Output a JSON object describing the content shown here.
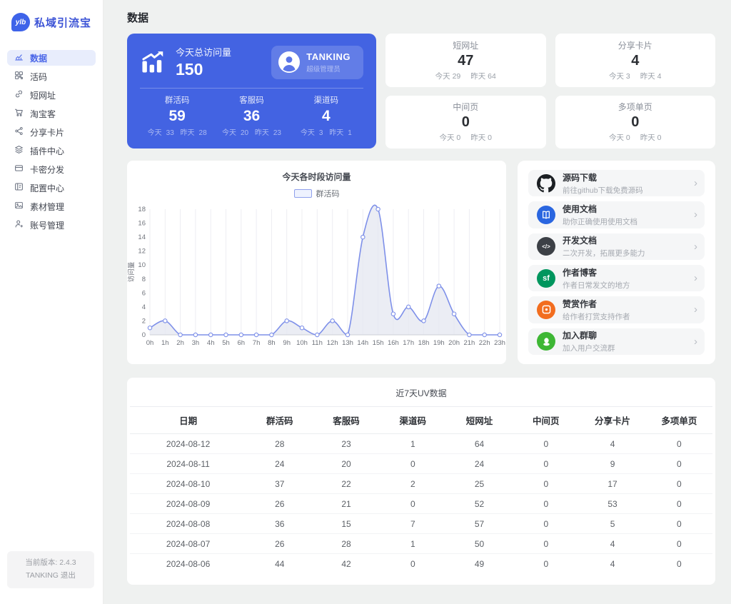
{
  "app": {
    "logo_badge": "ylb",
    "logo_text": "私域引流宝",
    "primary_color": "#4363e2"
  },
  "labels": {
    "today": "今天",
    "yesterday": "昨天"
  },
  "sidebar": {
    "items": [
      {
        "label": "数据",
        "icon": "data-chart-icon",
        "active": true
      },
      {
        "label": "活码",
        "icon": "qr-code-icon",
        "active": false
      },
      {
        "label": "短网址",
        "icon": "link-icon",
        "active": false
      },
      {
        "label": "淘宝客",
        "icon": "cart-icon",
        "active": false
      },
      {
        "label": "分享卡片",
        "icon": "share-icon",
        "active": false
      },
      {
        "label": "插件中心",
        "icon": "layers-icon",
        "active": false
      },
      {
        "label": "卡密分发",
        "icon": "card-icon",
        "active": false
      },
      {
        "label": "配置中心",
        "icon": "config-icon",
        "active": false
      },
      {
        "label": "素材管理",
        "icon": "material-icon",
        "active": false
      },
      {
        "label": "账号管理",
        "icon": "user-icon",
        "active": false
      }
    ],
    "footer": {
      "version": "当前版本: 2.4.3",
      "user": "TANKING",
      "logout": "退出"
    }
  },
  "header": {
    "title": "数据"
  },
  "overview": {
    "total": {
      "label": "今天总访问量",
      "value": "150",
      "icon": "trend-bars-icon"
    },
    "admin": {
      "name": "TANKING",
      "role": "超级管理员",
      "icon": "avatar-person-icon"
    },
    "blue_stats": [
      {
        "label": "群活码",
        "value": "59",
        "today": "33",
        "yesterday": "28"
      },
      {
        "label": "客服码",
        "value": "36",
        "today": "20",
        "yesterday": "23"
      },
      {
        "label": "渠道码",
        "value": "4",
        "today": "3",
        "yesterday": "1"
      }
    ],
    "white_stats": [
      {
        "label": "短网址",
        "value": "47",
        "today": "29",
        "yesterday": "64"
      },
      {
        "label": "分享卡片",
        "value": "4",
        "today": "3",
        "yesterday": "4"
      },
      {
        "label": "中间页",
        "value": "0",
        "today": "0",
        "yesterday": "0"
      },
      {
        "label": "多项单页",
        "value": "0",
        "today": "0",
        "yesterday": "0"
      }
    ]
  },
  "chart_data": {
    "type": "area",
    "title": "今天各时段访问量",
    "ylabel": "访问量",
    "legend": [
      "群活码"
    ],
    "legend_position": "top-center",
    "grid": "vertical",
    "x": [
      "0h",
      "1h",
      "2h",
      "3h",
      "4h",
      "5h",
      "6h",
      "7h",
      "8h",
      "9h",
      "10h",
      "11h",
      "12h",
      "13h",
      "14h",
      "15h",
      "16h",
      "17h",
      "18h",
      "19h",
      "20h",
      "21h",
      "22h",
      "23h"
    ],
    "series": [
      {
        "name": "群活码",
        "values": [
          1,
          2,
          0,
          0,
          0,
          0,
          0,
          0,
          0,
          2,
          1,
          0,
          2,
          0,
          14,
          18,
          3,
          4,
          2,
          7,
          3,
          0,
          0,
          0
        ]
      }
    ],
    "ylim": [
      0,
      18
    ],
    "y_ticks": [
      0,
      2,
      4,
      6,
      8,
      10,
      12,
      14,
      16,
      18
    ],
    "line_color": "#7e90e9",
    "area_color": "rgba(228,231,240,0.75)"
  },
  "links": [
    {
      "title": "源码下载",
      "desc": "前往github下载免费源码",
      "icon": "github-icon",
      "color": "#1b1f23"
    },
    {
      "title": "使用文档",
      "desc": "助你正确使用使用文档",
      "icon": "docs-icon",
      "color": "#2a66e0"
    },
    {
      "title": "开发文档",
      "desc": "二次开发，拓展更多能力",
      "icon": "code-icon",
      "color": "#3c4046"
    },
    {
      "title": "作者博客",
      "desc": "作者日常发文的地方",
      "icon": "sf-blog-icon",
      "color": "#00965e",
      "glyph": "sf"
    },
    {
      "title": "赞赏作者",
      "desc": "给作者打赏支持作者",
      "icon": "reward-icon",
      "color": "#f26d1f"
    },
    {
      "title": "加入群聊",
      "desc": "加入用户交流群",
      "icon": "group-chat-icon",
      "color": "#3eb735"
    }
  ],
  "table": {
    "title": "近7天UV数据",
    "columns": [
      "日期",
      "群活码",
      "客服码",
      "渠道码",
      "短网址",
      "中间页",
      "分享卡片",
      "多项单页"
    ],
    "rows": [
      [
        "2024-08-12",
        "28",
        "23",
        "1",
        "64",
        "0",
        "4",
        "0"
      ],
      [
        "2024-08-11",
        "24",
        "20",
        "0",
        "24",
        "0",
        "9",
        "0"
      ],
      [
        "2024-08-10",
        "37",
        "22",
        "2",
        "25",
        "0",
        "17",
        "0"
      ],
      [
        "2024-08-09",
        "26",
        "21",
        "0",
        "52",
        "0",
        "53",
        "0"
      ],
      [
        "2024-08-08",
        "36",
        "15",
        "7",
        "57",
        "0",
        "5",
        "0"
      ],
      [
        "2024-08-07",
        "26",
        "28",
        "1",
        "50",
        "0",
        "4",
        "0"
      ],
      [
        "2024-08-06",
        "44",
        "42",
        "0",
        "49",
        "0",
        "4",
        "0"
      ]
    ]
  }
}
